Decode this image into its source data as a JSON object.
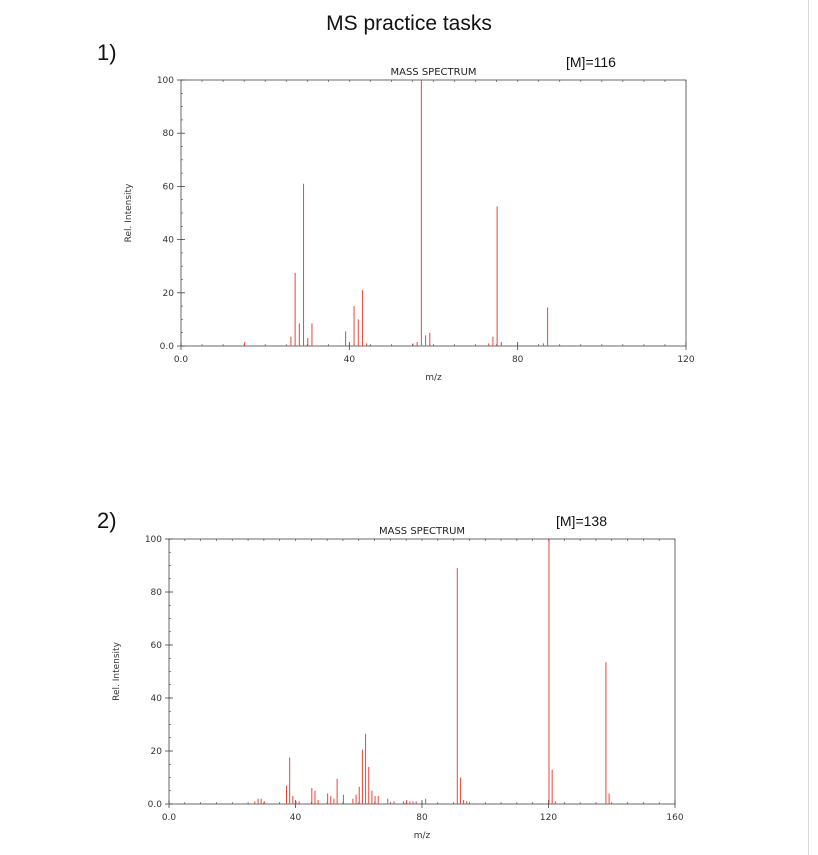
{
  "page": {
    "title": "MS practice tasks"
  },
  "tasks": [
    {
      "label": "1)",
      "molecular_ion": "[M]=116"
    },
    {
      "label": "2)",
      "molecular_ion": "[M]=138"
    }
  ],
  "colors": {
    "peak": "#e8463a",
    "axis": "#444444"
  },
  "chart_data": [
    {
      "type": "bar",
      "title": "MASS SPECTRUM",
      "xlabel": "m/z",
      "ylabel": "Rel. Intensity",
      "xlim": [
        0,
        120
      ],
      "ylim": [
        0,
        100
      ],
      "xticks": [
        0,
        40,
        80,
        120
      ],
      "xtick_labels": [
        "0.0",
        "40",
        "80",
        "120"
      ],
      "yticks": [
        0,
        20,
        40,
        60,
        80,
        100
      ],
      "ytick_labels": [
        "0.0",
        "20",
        "40",
        "60",
        "80",
        "100"
      ],
      "grid": false,
      "series": [
        {
          "x": [
            15,
            26,
            27,
            28,
            29,
            30,
            31,
            39,
            41,
            42,
            43,
            44,
            55,
            56,
            57,
            58,
            59,
            73,
            74,
            75,
            76,
            86,
            87
          ],
          "y": [
            1.5,
            3.5,
            27.5,
            8.5,
            61,
            3,
            8.5,
            5.5,
            15,
            10,
            21,
            1,
            1,
            1.5,
            100,
            4,
            5,
            1,
            3.5,
            52.5,
            1.5,
            1,
            14.5
          ]
        }
      ]
    },
    {
      "type": "bar",
      "title": "MASS SPECTRUM",
      "xlabel": "m/z",
      "ylabel": "Rel. Intensity",
      "xlim": [
        0,
        160
      ],
      "ylim": [
        0,
        100
      ],
      "xticks": [
        0,
        40,
        80,
        120,
        160
      ],
      "xtick_labels": [
        "0.0",
        "40",
        "80",
        "120",
        "160"
      ],
      "yticks": [
        0,
        20,
        40,
        60,
        80,
        100
      ],
      "ytick_labels": [
        "0.0",
        "20",
        "40",
        "60",
        "80",
        "100"
      ],
      "grid": false,
      "series": [
        {
          "x": [
            27,
            28,
            29,
            30,
            37,
            38,
            39,
            40,
            41,
            45,
            46,
            47,
            50,
            51,
            52,
            53,
            55,
            58,
            59,
            60,
            61,
            62,
            63,
            64,
            65,
            66,
            69,
            71,
            74,
            75,
            76,
            77,
            78,
            81,
            91,
            92,
            93,
            94,
            120,
            121,
            122,
            138,
            139
          ],
          "y": [
            1,
            2,
            2,
            1,
            7,
            17.5,
            3,
            1,
            1,
            6,
            5,
            1.5,
            4,
            3,
            2,
            9.5,
            3.5,
            2,
            3.5,
            6.5,
            20.5,
            26.5,
            14,
            5,
            3,
            3,
            2,
            1,
            1,
            1.5,
            1,
            1,
            1,
            2,
            89,
            10,
            1.5,
            1,
            100,
            13,
            1,
            53.5,
            4
          ]
        }
      ]
    }
  ]
}
